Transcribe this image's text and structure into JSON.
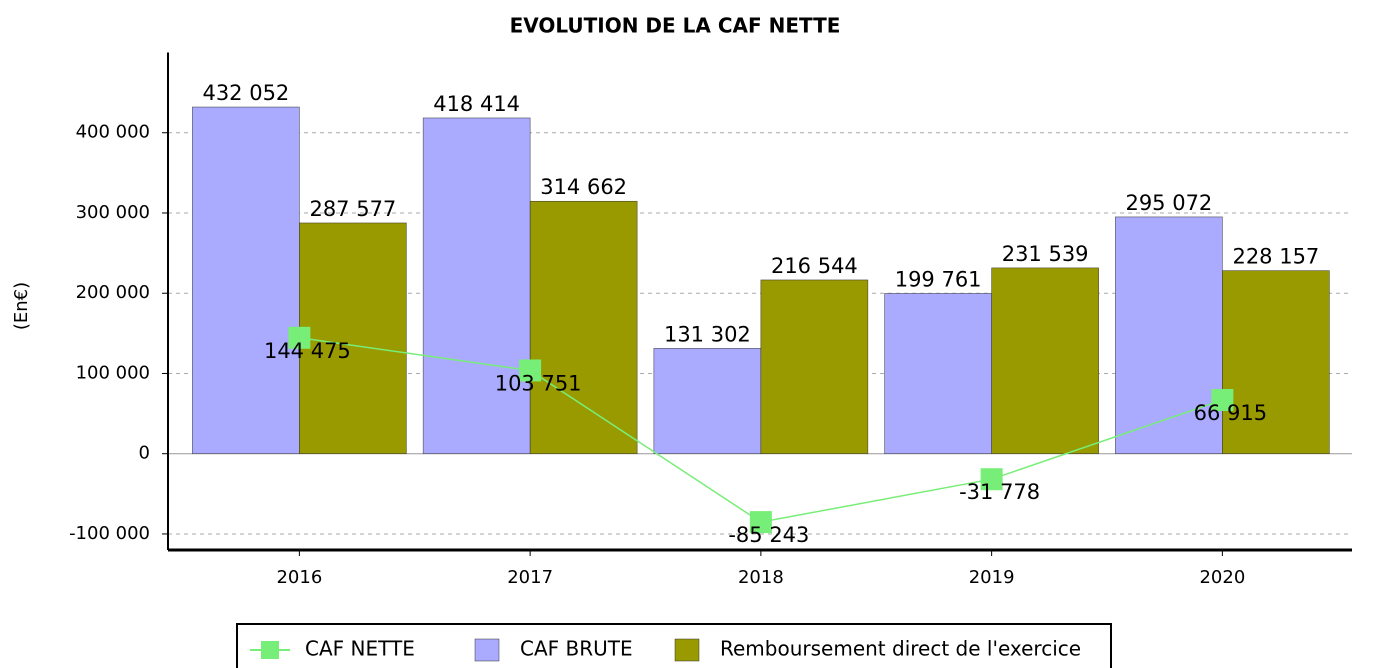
{
  "chart_data": {
    "type": "bar",
    "title": "EVOLUTION DE LA CAF NETTE",
    "y_label": "(En€)",
    "categories": [
      "2016",
      "2017",
      "2018",
      "2019",
      "2020"
    ],
    "series": [
      {
        "name": "CAF NETTE",
        "type": "line",
        "color": "#77ee77",
        "values": [
          144475,
          103751,
          -85243,
          -31778,
          66915
        ],
        "value_labels": [
          "144 475",
          "103 751",
          "-85 243",
          "-31 778",
          "66 915"
        ]
      },
      {
        "name": "CAF BRUTE",
        "type": "bar",
        "color": "#aaaaff",
        "values": [
          432052,
          418414,
          131302,
          199761,
          295072
        ],
        "value_labels": [
          "432 052",
          "418 414",
          "131 302",
          "199 761",
          "295 072"
        ]
      },
      {
        "name": "Remboursement direct de l'exercice",
        "type": "bar",
        "color": "#999900",
        "values": [
          287577,
          314662,
          216544,
          231539,
          228157
        ],
        "value_labels": [
          "287 577",
          "314 662",
          "216 544",
          "231 539",
          "228 157"
        ]
      }
    ],
    "ylim": [
      -120000,
      500000
    ],
    "yticks": [
      {
        "value": -100000,
        "label": "-100 000"
      },
      0,
      {
        "value": 100000,
        "label": "100 000"
      },
      {
        "value": 200000,
        "label": "200 000"
      },
      {
        "value": 300000,
        "label": "300 000"
      },
      {
        "value": 400000,
        "label": "400 000"
      }
    ],
    "grid": true
  }
}
